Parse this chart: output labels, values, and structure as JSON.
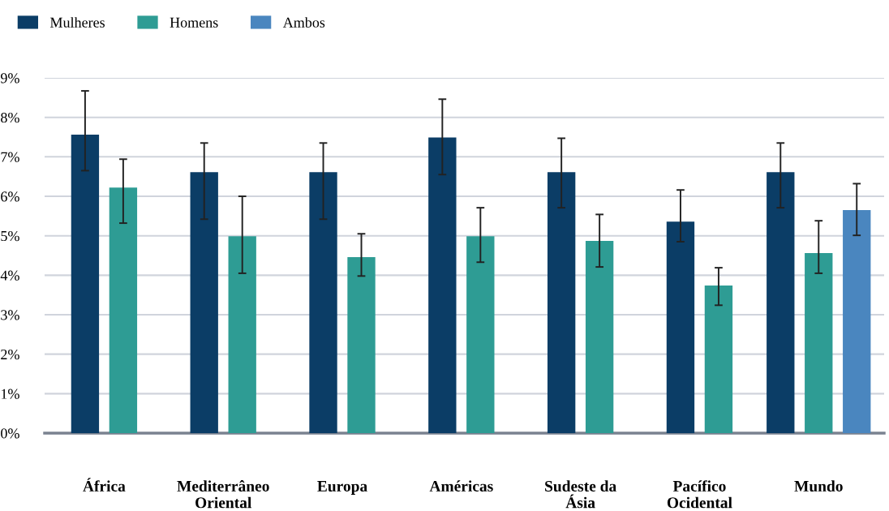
{
  "chart_data": {
    "type": "bar",
    "categories": [
      "África",
      "Mediterrâneo\nOriental",
      "Europa",
      "Américas",
      "Sudeste da\nÁsia",
      "Pacífico\nOcidental",
      "Mundo"
    ],
    "series": [
      {
        "name": "Mulheres",
        "color": "#0b3d66",
        "values": [
          7.56,
          6.61,
          6.61,
          7.49,
          6.61,
          5.36,
          6.61
        ],
        "errors": [
          [
            6.65,
            8.67
          ],
          [
            5.42,
            7.35
          ],
          [
            5.42,
            7.35
          ],
          [
            6.55,
            8.46
          ],
          [
            5.71,
            7.47
          ],
          [
            4.85,
            6.16
          ],
          [
            5.71,
            7.35
          ]
        ]
      },
      {
        "name": "Homens",
        "color": "#2e9c94",
        "values": [
          6.22,
          4.99,
          4.46,
          4.99,
          4.87,
          3.74,
          4.56
        ],
        "errors": [
          [
            5.32,
            6.94
          ],
          [
            4.05,
            6.0
          ],
          [
            3.98,
            5.05
          ],
          [
            4.33,
            5.71
          ],
          [
            4.21,
            5.54
          ],
          [
            3.24,
            4.19
          ],
          [
            4.05,
            5.38
          ]
        ]
      },
      {
        "name": "Ambos",
        "color": "#4a86bf",
        "values": [
          null,
          null,
          null,
          null,
          null,
          null,
          5.65
        ],
        "errors": [
          null,
          null,
          null,
          null,
          null,
          null,
          [
            5.01,
            6.32
          ]
        ]
      }
    ],
    "ylim": [
      0,
      9
    ],
    "yticks": [
      {
        "value": 0,
        "label": "0%"
      },
      {
        "value": 1,
        "label": "1%"
      },
      {
        "value": 2,
        "label": "2%"
      },
      {
        "value": 3,
        "label": "3%"
      },
      {
        "value": 4,
        "label": "4%"
      },
      {
        "value": 5,
        "label": "5%"
      },
      {
        "value": 6,
        "label": "6%"
      },
      {
        "value": 7,
        "label": "7%"
      },
      {
        "value": 8,
        "label": "8%"
      },
      {
        "value": 9,
        "label": "9%"
      }
    ],
    "grid": "y",
    "legend": "top left"
  }
}
